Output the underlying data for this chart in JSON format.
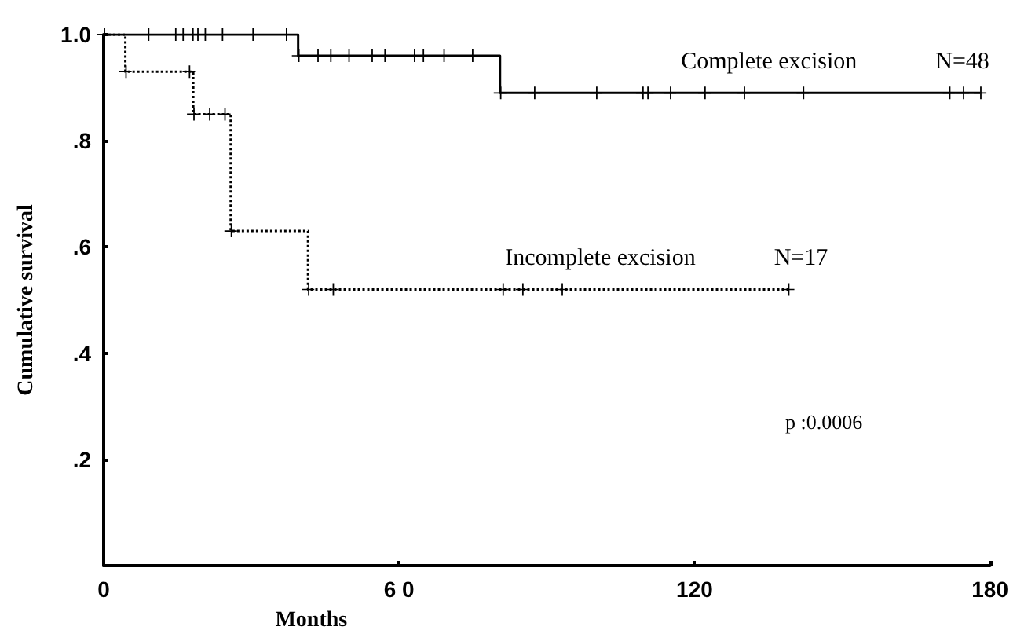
{
  "chart_data": {
    "type": "step",
    "xlabel": "Months",
    "ylabel": "Cumulative survival",
    "xlim": [
      0,
      180
    ],
    "xticks": [
      0,
      {
        "value": 60,
        "label": "6 0"
      },
      120,
      180
    ],
    "ylim": [
      0,
      1.0
    ],
    "yticks": [
      {
        "value": 0.2,
        "label": ".2"
      },
      {
        "value": 0.4,
        "label": ".4"
      },
      {
        "value": 0.6,
        "label": ".6"
      },
      {
        "value": 0.8,
        "label": ".8"
      },
      {
        "value": 1.0,
        "label": "1.0"
      }
    ],
    "grid": false,
    "legend": false,
    "marker": "cross",
    "annotations": [
      "N=48",
      "N=17",
      "p :0.0006"
    ],
    "series": [
      {
        "name": "Complete excision",
        "color": "#000000",
        "line_style": "solid",
        "x": [
          0,
          9,
          14.5,
          16,
          18,
          19,
          20.5,
          24,
          30.2,
          37,
          39.5,
          43.4,
          46,
          49.7,
          54.4,
          57,
          63,
          64.8,
          69,
          74.8,
          80.5,
          87.4,
          100,
          109.4,
          110.4,
          115,
          122,
          130,
          142,
          171.7,
          174.5,
          178
        ],
        "values": [
          1.0,
          1.0,
          1.0,
          1.0,
          1.0,
          1.0,
          1.0,
          1.0,
          1.0,
          1.0,
          0.96,
          0.96,
          0.96,
          0.96,
          0.96,
          0.96,
          0.96,
          0.96,
          0.96,
          0.96,
          0.89,
          0.89,
          0.89,
          0.89,
          0.89,
          0.89,
          0.89,
          0.89,
          0.89,
          0.89,
          0.89,
          0.89
        ]
      },
      {
        "name": "Incomplete excision",
        "color": "#000000",
        "line_style": "dotted",
        "x": [
          0,
          4.4,
          17.3,
          18.2,
          21.4,
          24.5,
          25.8,
          41.5,
          46.5,
          81,
          85,
          93,
          139
        ],
        "values": [
          1.0,
          0.93,
          0.93,
          0.85,
          0.85,
          0.85,
          0.63,
          0.52,
          0.52,
          0.52,
          0.52,
          0.52,
          0.52
        ]
      }
    ]
  }
}
